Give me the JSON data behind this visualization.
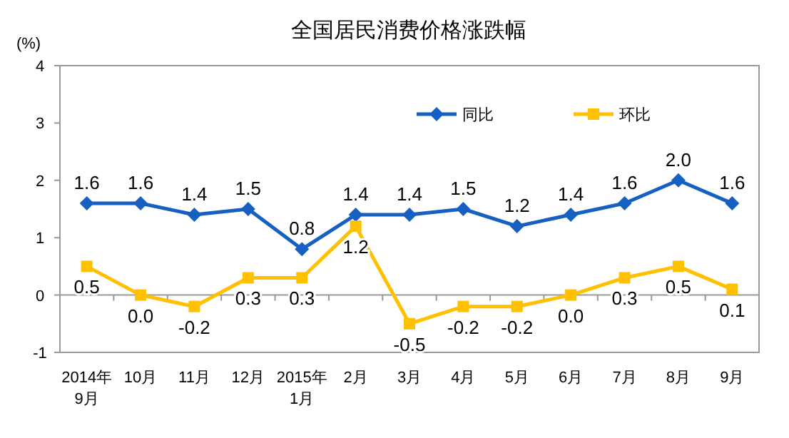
{
  "chart_data": {
    "type": "line",
    "title": "全国居民消费价格涨跌幅",
    "ylabel": "(%)",
    "categories": [
      "2014年\n9月",
      "10月",
      "11月",
      "12月",
      "2015年\n1月",
      "2月",
      "3月",
      "4月",
      "5月",
      "6月",
      "7月",
      "8月",
      "9月"
    ],
    "series": [
      {
        "name": "同比",
        "color": "#1560c0",
        "marker": "diamond",
        "values": [
          1.6,
          1.6,
          1.4,
          1.5,
          0.8,
          1.4,
          1.4,
          1.5,
          1.2,
          1.4,
          1.6,
          2.0,
          1.6
        ],
        "value_labels": [
          "1.6",
          "1.6",
          "1.4",
          "1.5",
          "0.8",
          "1.4",
          "1.4",
          "1.5",
          "1.2",
          "1.4",
          "1.6",
          "2.0",
          "1.6"
        ]
      },
      {
        "name": "环比",
        "color": "#ffc000",
        "marker": "square",
        "values": [
          0.5,
          0.0,
          -0.2,
          0.3,
          0.3,
          1.2,
          -0.5,
          -0.2,
          -0.2,
          0.0,
          0.3,
          0.5,
          0.1
        ],
        "value_labels": [
          "0.5",
          "0.0",
          "-0.2",
          "0.3",
          "0.3",
          "1.2",
          "-0.5",
          "-0.2",
          "-0.2",
          "0.0",
          "0.3",
          "0.5",
          "0.1"
        ]
      }
    ],
    "ylim": [
      -1,
      4
    ],
    "yticks": [
      -1,
      0,
      1,
      2,
      3,
      4
    ],
    "legend": "top",
    "line_style": "solid"
  }
}
